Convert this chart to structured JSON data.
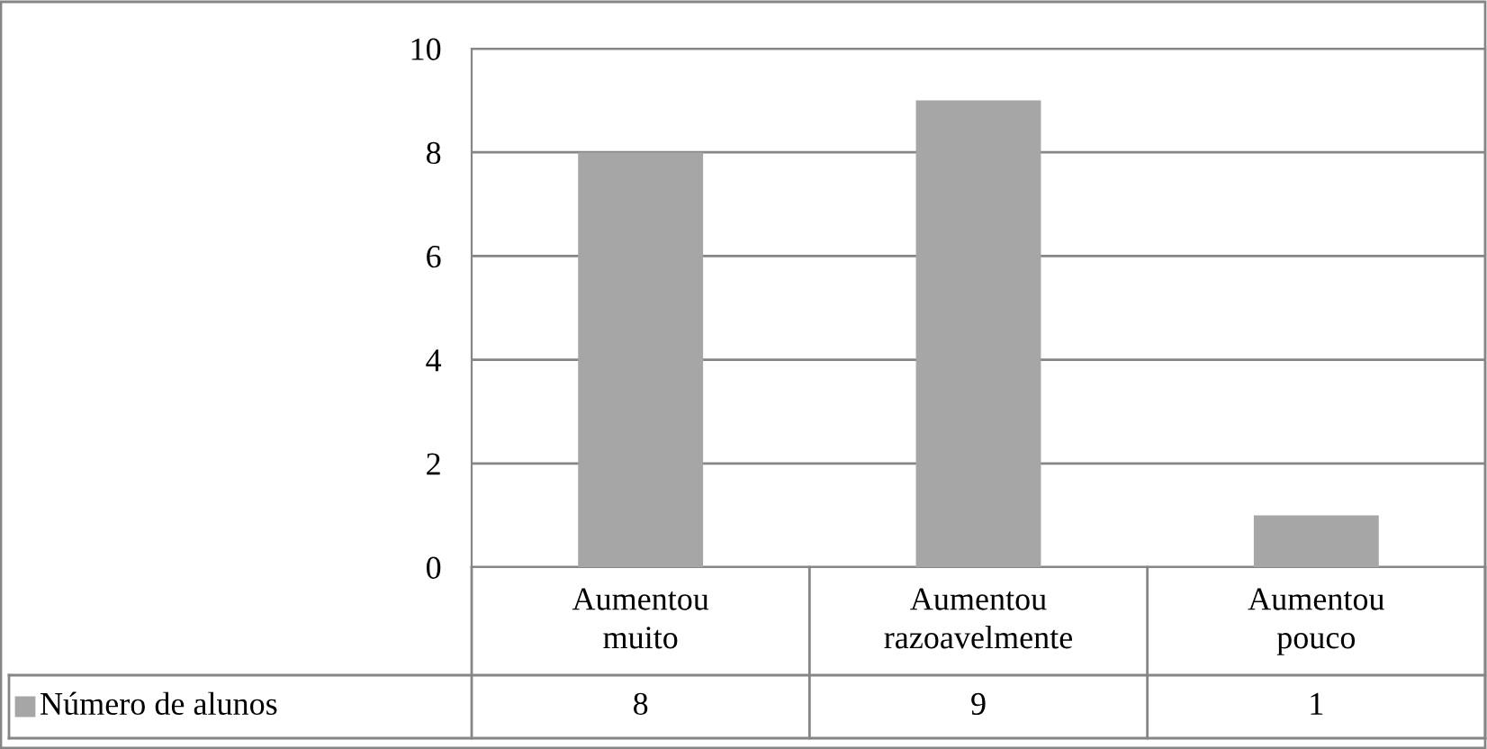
{
  "chart_data": {
    "type": "bar",
    "categories": [
      "Aumentou\nmuito",
      "Aumentou\nrazoavelmente",
      "Aumentou\npouco"
    ],
    "series": [
      {
        "name": "Número de alunos",
        "color": "#a6a6a6",
        "values": [
          8,
          9,
          1
        ]
      }
    ],
    "ylim": [
      0,
      10
    ],
    "yticks": [
      0,
      2,
      4,
      6,
      8,
      10
    ],
    "grid": "y",
    "legend": "bottom",
    "data_labels": true
  }
}
